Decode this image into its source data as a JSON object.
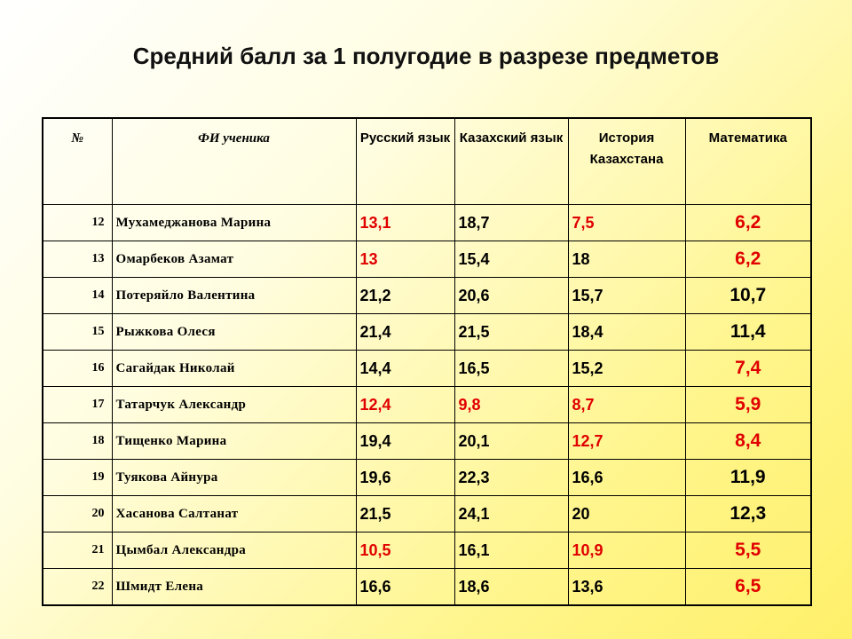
{
  "title": "Средний балл за 1 полугодие в разрезе предметов",
  "table": {
    "headers": [
      "№",
      "ФИ ученика",
      "Русский язык",
      "Казахский язык",
      "История Казахстана",
      "Математика"
    ],
    "rows": [
      {
        "no": "12",
        "name": "Мухамеджанова Марина",
        "cells": [
          "13,1",
          "18,7",
          "7,5",
          "6,2"
        ],
        "colors": [
          "#e00000",
          "#000000",
          "#e00000",
          "#e00000"
        ]
      },
      {
        "no": "13",
        "name": "Омарбеков Азамат",
        "cells": [
          "13",
          "15,4",
          "18",
          "6,2"
        ],
        "colors": [
          "#e00000",
          "#000000",
          "#000000",
          "#e00000"
        ]
      },
      {
        "no": "14",
        "name": "Потеряйло Валентина",
        "cells": [
          "21,2",
          "20,6",
          "15,7",
          "10,7"
        ],
        "colors": [
          "#000000",
          "#000000",
          "#000000",
          "#000000"
        ]
      },
      {
        "no": "15",
        "name": "Рыжкова Олеся",
        "cells": [
          "21,4",
          "21,5",
          "18,4",
          "11,4"
        ],
        "colors": [
          "#000000",
          "#000000",
          "#000000",
          "#000000"
        ]
      },
      {
        "no": "16",
        "name": "Сагайдак Николай",
        "cells": [
          "14,4",
          "16,5",
          "15,2",
          "7,4"
        ],
        "colors": [
          "#000000",
          "#000000",
          "#000000",
          "#e00000"
        ]
      },
      {
        "no": "17",
        "name": "Татарчук Александр",
        "cells": [
          "12,4",
          "9,8",
          "8,7",
          "5,9"
        ],
        "colors": [
          "#e00000",
          "#e00000",
          "#e00000",
          "#e00000"
        ]
      },
      {
        "no": "18",
        "name": "Тищенко Марина",
        "cells": [
          "19,4",
          "20,1",
          "12,7",
          "8,4"
        ],
        "colors": [
          "#000000",
          "#000000",
          "#e00000",
          "#e00000"
        ]
      },
      {
        "no": "19",
        "name": "Туякова Айнура",
        "cells": [
          "19,6",
          "22,3",
          "16,6",
          "11,9"
        ],
        "colors": [
          "#000000",
          "#000000",
          "#000000",
          "#000000"
        ]
      },
      {
        "no": "20",
        "name": "Хасанова Салтанат",
        "cells": [
          "21,5",
          "24,1",
          "20",
          "12,3"
        ],
        "colors": [
          "#000000",
          "#000000",
          "#000000",
          "#000000"
        ]
      },
      {
        "no": "21",
        "name": "Цымбал Александра",
        "cells": [
          "10,5",
          "16,1",
          "10,9",
          "5,5"
        ],
        "colors": [
          "#e00000",
          "#000000",
          "#e00000",
          "#e00000"
        ]
      },
      {
        "no": "22",
        "name": "Шмидт Елена",
        "cells": [
          "16,6",
          "18,6",
          "13,6",
          "6,5"
        ],
        "colors": [
          "#000000",
          "#000000",
          "#000000",
          "#e00000"
        ]
      }
    ]
  }
}
